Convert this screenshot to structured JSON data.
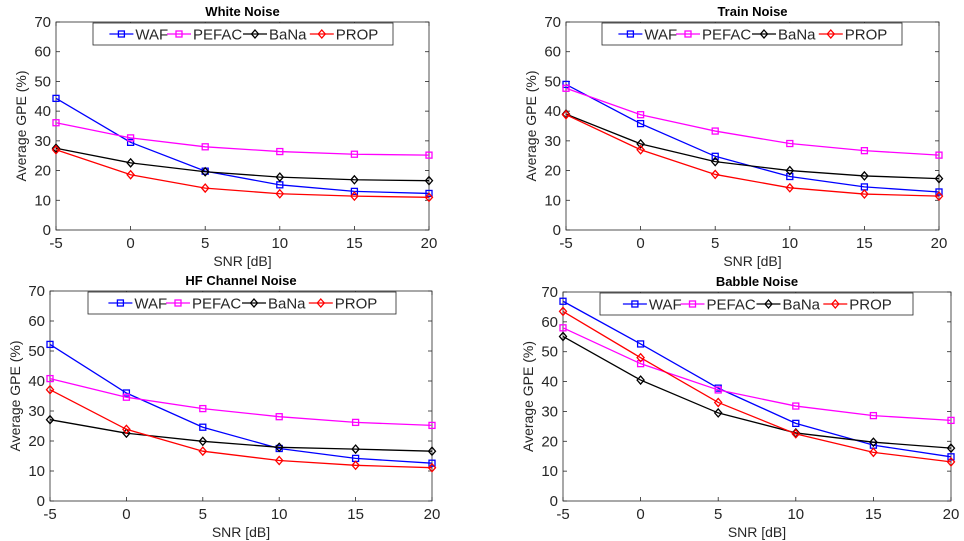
{
  "chart_data": [
    {
      "type": "line",
      "title": "White Noise",
      "xlabel": "SNR [dB]",
      "ylabel": "Average GPE (%)",
      "x": [
        -5,
        0,
        5,
        10,
        15,
        20
      ],
      "xlim": [
        -5,
        20
      ],
      "ylim": [
        0,
        70
      ],
      "xticks": [
        "-5",
        "0",
        "5",
        "10",
        "15",
        "20"
      ],
      "yticks": [
        "0",
        "10",
        "20",
        "30",
        "40",
        "50",
        "60",
        "70"
      ],
      "legend_position": "top",
      "series": [
        {
          "name": "WAF",
          "color": "#0000ff",
          "marker": "square",
          "values": [
            44.3,
            29.5,
            19.8,
            15.2,
            13.0,
            12.3
          ]
        },
        {
          "name": "PEFAC",
          "color": "#ff00ff",
          "marker": "square",
          "values": [
            36.1,
            31.0,
            28.0,
            26.4,
            25.5,
            25.2
          ]
        },
        {
          "name": "BaNa",
          "color": "#000000",
          "marker": "diamond",
          "values": [
            27.5,
            22.6,
            19.6,
            17.8,
            16.9,
            16.6
          ]
        },
        {
          "name": "PROP",
          "color": "#ff0000",
          "marker": "diamond",
          "values": [
            27.0,
            18.6,
            14.1,
            12.2,
            11.4,
            11.0
          ]
        }
      ]
    },
    {
      "type": "line",
      "title": "Train Noise",
      "xlabel": "SNR [dB]",
      "ylabel": "Average GPE (%)",
      "x": [
        -5,
        0,
        5,
        10,
        15,
        20
      ],
      "xlim": [
        -5,
        20
      ],
      "ylim": [
        0,
        70
      ],
      "xticks": [
        "-5",
        "0",
        "5",
        "10",
        "15",
        "20"
      ],
      "yticks": [
        "0",
        "10",
        "20",
        "30",
        "40",
        "50",
        "60",
        "70"
      ],
      "legend_position": "top",
      "series": [
        {
          "name": "WAF",
          "color": "#0000ff",
          "marker": "square",
          "values": [
            49.0,
            35.8,
            24.8,
            18.0,
            14.5,
            12.8
          ]
        },
        {
          "name": "PEFAC",
          "color": "#ff00ff",
          "marker": "square",
          "values": [
            47.7,
            38.8,
            33.3,
            29.1,
            26.7,
            25.2
          ]
        },
        {
          "name": "BaNa",
          "color": "#000000",
          "marker": "diamond",
          "values": [
            39.0,
            29.0,
            23.0,
            20.0,
            18.2,
            17.3
          ]
        },
        {
          "name": "PROP",
          "color": "#ff0000",
          "marker": "diamond",
          "values": [
            38.8,
            27.0,
            18.7,
            14.2,
            12.1,
            11.4
          ]
        }
      ]
    },
    {
      "type": "line",
      "title": "HF Channel Noise",
      "xlabel": "SNR [dB]",
      "ylabel": "Average GPE (%)",
      "x": [
        -5,
        0,
        5,
        10,
        15,
        20
      ],
      "xlim": [
        -5,
        20
      ],
      "ylim": [
        0,
        70
      ],
      "xticks": [
        "-5",
        "0",
        "5",
        "10",
        "15",
        "20"
      ],
      "yticks": [
        "0",
        "10",
        "20",
        "30",
        "40",
        "50",
        "60",
        "70"
      ],
      "legend_position": "top",
      "series": [
        {
          "name": "WAF",
          "color": "#0000ff",
          "marker": "square",
          "values": [
            52.2,
            36.0,
            24.6,
            17.5,
            14.2,
            12.6
          ]
        },
        {
          "name": "PEFAC",
          "color": "#ff00ff",
          "marker": "square",
          "values": [
            40.8,
            34.6,
            30.8,
            28.1,
            26.2,
            25.2
          ]
        },
        {
          "name": "BaNa",
          "color": "#000000",
          "marker": "diamond",
          "values": [
            27.1,
            22.6,
            19.9,
            17.9,
            17.3,
            16.6
          ]
        },
        {
          "name": "PROP",
          "color": "#ff0000",
          "marker": "diamond",
          "values": [
            37.1,
            23.9,
            16.6,
            13.5,
            11.9,
            11.1
          ]
        }
      ]
    },
    {
      "type": "line",
      "title": "Babble Noise",
      "xlabel": "SNR [dB]",
      "ylabel": "Average GPE (%)",
      "x": [
        -5,
        0,
        5,
        10,
        15,
        20
      ],
      "xlim": [
        -5,
        20
      ],
      "ylim": [
        0,
        70
      ],
      "xticks": [
        "-5",
        "0",
        "5",
        "10",
        "15",
        "20"
      ],
      "yticks": [
        "0",
        "10",
        "20",
        "30",
        "40",
        "50",
        "60",
        "70"
      ],
      "legend_position": "top",
      "series": [
        {
          "name": "WAF",
          "color": "#0000ff",
          "marker": "square",
          "values": [
            66.9,
            52.6,
            37.8,
            26.0,
            18.7,
            14.8
          ]
        },
        {
          "name": "PEFAC",
          "color": "#ff00ff",
          "marker": "square",
          "values": [
            58.0,
            46.0,
            37.2,
            31.8,
            28.6,
            27.0
          ]
        },
        {
          "name": "BaNa",
          "color": "#000000",
          "marker": "diamond",
          "values": [
            55.1,
            40.5,
            29.5,
            22.8,
            19.7,
            17.7
          ]
        },
        {
          "name": "PROP",
          "color": "#ff0000",
          "marker": "diamond",
          "values": [
            63.5,
            48.0,
            33.0,
            22.5,
            16.3,
            13.1
          ]
        }
      ]
    }
  ]
}
